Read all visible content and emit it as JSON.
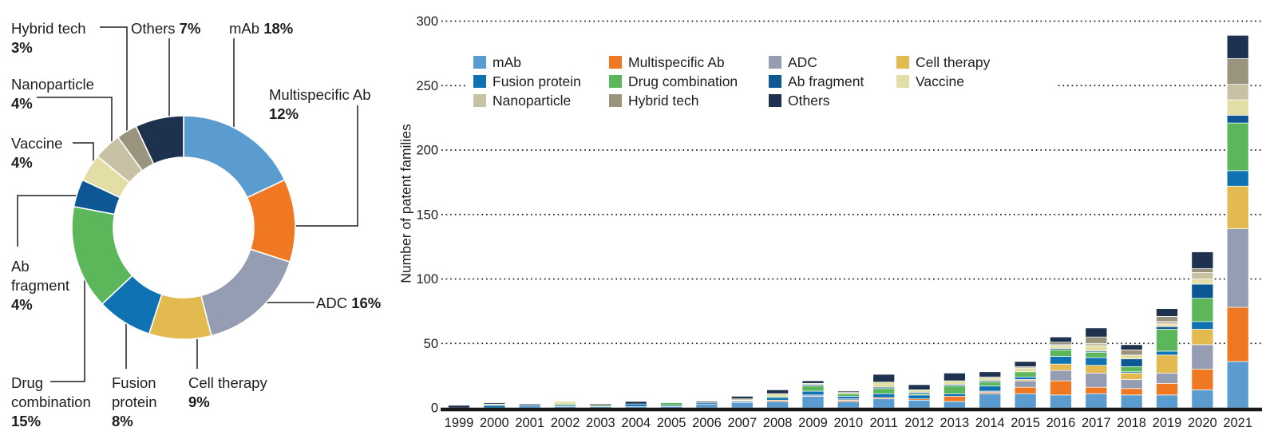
{
  "colors": {
    "mab": "#5A9BD0",
    "multispecific": "#F07822",
    "adc": "#949DB2",
    "cell": "#E2BA50",
    "fusion": "#0F72B2",
    "drug": "#5CB75A",
    "abfrag": "#0E5795",
    "vaccine": "#E3DDA6",
    "nano": "#C9C1A4",
    "hybrid": "#9A947E",
    "others": "#1E3250",
    "text": "#1E1E1E",
    "axis": "#181818"
  },
  "chart_data": [
    {
      "type": "pie",
      "subtype": "donut",
      "title": "",
      "slices": [
        {
          "key": "mab",
          "label": "mAb",
          "pct": "18%",
          "value": 18
        },
        {
          "key": "multispecific",
          "label": "Multispecific Ab",
          "pct": "12%",
          "value": 12
        },
        {
          "key": "adc",
          "label": "ADC",
          "pct": "16%",
          "value": 16
        },
        {
          "key": "cell",
          "label": "Cell therapy",
          "pct": "9%",
          "value": 9
        },
        {
          "key": "fusion",
          "label": "Fusion protein",
          "pct": "8%",
          "value": 8
        },
        {
          "key": "drug",
          "label": "Drug combination",
          "pct": "15%",
          "value": 15
        },
        {
          "key": "abfrag",
          "label": "Ab fragment",
          "pct": "4%",
          "value": 4
        },
        {
          "key": "vaccine",
          "label": "Vaccine",
          "pct": "4%",
          "value": 4
        },
        {
          "key": "nano",
          "label": "Nanoparticle",
          "pct": "4%",
          "value": 4
        },
        {
          "key": "hybrid",
          "label": "Hybrid tech",
          "pct": "3%",
          "value": 3
        },
        {
          "key": "others",
          "label": "Others",
          "pct": "7%",
          "value": 7
        }
      ]
    },
    {
      "type": "bar",
      "stacked": true,
      "ylabel": "Number of patent families",
      "ylim": [
        0,
        300
      ],
      "yticks": [
        0,
        50,
        100,
        150,
        200,
        250,
        300
      ],
      "grid": "dotted-horizontal",
      "legend_position": "top",
      "categories": [
        "1999",
        "2000",
        "2001",
        "2002",
        "2003",
        "2004",
        "2005",
        "2006",
        "2007",
        "2008",
        "2009",
        "2010",
        "2011",
        "2012",
        "2013",
        "2014",
        "2015",
        "2016",
        "2017",
        "2018",
        "2019",
        "2020",
        "2021"
      ],
      "series": [
        {
          "key": "mab",
          "name": "mAb",
          "values": [
            0,
            0,
            2,
            1,
            1,
            1,
            1,
            3,
            4,
            5,
            9,
            5,
            7,
            6,
            5,
            11,
            11,
            10,
            11,
            10,
            10,
            14,
            36
          ]
        },
        {
          "key": "multispecific",
          "name": "Multispecific Ab",
          "values": [
            0,
            0,
            0,
            0,
            0,
            0,
            0,
            0,
            0,
            1,
            0,
            1,
            1,
            1,
            4,
            1,
            5,
            11,
            5,
            5,
            9,
            16,
            42
          ]
        },
        {
          "key": "adc",
          "name": "ADC",
          "values": [
            0,
            0,
            0,
            0,
            0,
            0,
            0,
            0,
            0,
            0,
            1,
            1,
            0,
            0,
            0,
            1,
            5,
            8,
            11,
            7,
            8,
            19,
            61
          ]
        },
        {
          "key": "cell",
          "name": "Cell therapy",
          "values": [
            0,
            0,
            0,
            0,
            0,
            0,
            0,
            0,
            0,
            0,
            0,
            0,
            0,
            0,
            0,
            0,
            1,
            5,
            6,
            5,
            14,
            12,
            33
          ]
        },
        {
          "key": "fusion",
          "name": "Fusion protein",
          "values": [
            0,
            2,
            0,
            1,
            0,
            2,
            1,
            1,
            1,
            2,
            3,
            2,
            3,
            3,
            2,
            4,
            2,
            6,
            6,
            1,
            3,
            6,
            12
          ]
        },
        {
          "key": "drug",
          "name": "Drug combination",
          "values": [
            0,
            0,
            0,
            1,
            1,
            0,
            2,
            0,
            0,
            1,
            4,
            2,
            4,
            1,
            6,
            3,
            4,
            5,
            4,
            4,
            17,
            18,
            37
          ]
        },
        {
          "key": "abfrag",
          "name": "Ab fragment",
          "values": [
            0,
            0,
            0,
            0,
            0,
            0,
            0,
            0,
            0,
            0,
            1,
            0,
            1,
            1,
            1,
            1,
            0,
            1,
            1,
            6,
            2,
            11,
            6
          ]
        },
        {
          "key": "vaccine",
          "name": "Vaccine",
          "values": [
            0,
            0,
            0,
            2,
            0,
            0,
            0,
            0,
            1,
            2,
            1,
            1,
            4,
            2,
            3,
            2,
            3,
            2,
            4,
            3,
            2,
            4,
            12
          ]
        },
        {
          "key": "nano",
          "name": "Nanoparticle",
          "values": [
            0,
            1,
            0,
            0,
            0,
            0,
            0,
            0,
            1,
            0,
            0,
            0,
            0,
            0,
            0,
            0,
            0,
            1,
            2,
            0,
            2,
            5,
            12
          ]
        },
        {
          "key": "hybrid",
          "name": "Hybrid tech",
          "values": [
            0,
            0,
            0,
            0,
            0,
            0,
            0,
            0,
            0,
            0,
            0,
            0,
            0,
            0,
            0,
            1,
            1,
            2,
            5,
            4,
            4,
            3,
            20
          ]
        },
        {
          "key": "others",
          "name": "Others",
          "values": [
            2,
            1,
            1,
            0,
            1,
            2,
            0,
            1,
            2,
            3,
            2,
            1,
            6,
            4,
            6,
            4,
            4,
            4,
            7,
            4,
            6,
            13,
            18
          ]
        }
      ]
    }
  ]
}
